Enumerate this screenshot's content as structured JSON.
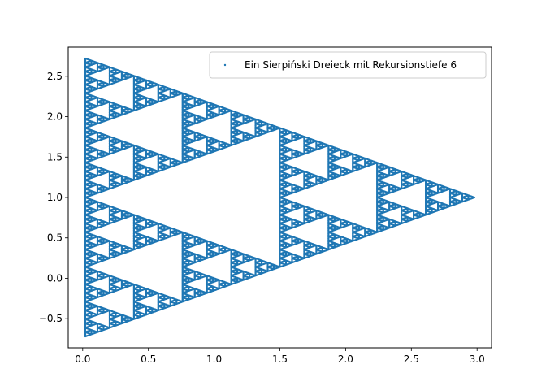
{
  "chart_data": {
    "type": "scatter",
    "title": "",
    "xlabel": "",
    "ylabel": "",
    "xlim": [
      -0.11,
      3.11
    ],
    "ylim": [
      -0.86,
      2.86
    ],
    "xticks": [
      {
        "value": 0.0,
        "label": "0.0"
      },
      {
        "value": 0.5,
        "label": "0.5"
      },
      {
        "value": 1.0,
        "label": "1.0"
      },
      {
        "value": 1.5,
        "label": "1.5"
      },
      {
        "value": 2.0,
        "label": "2.0"
      },
      {
        "value": 2.5,
        "label": "2.5"
      },
      {
        "value": 3.0,
        "label": "3.0"
      }
    ],
    "yticks": [
      {
        "value": -0.5,
        "label": "−0.5"
      },
      {
        "value": 0.0,
        "label": "0.0"
      },
      {
        "value": 0.5,
        "label": "0.5"
      },
      {
        "value": 1.0,
        "label": "1.0"
      },
      {
        "value": 1.5,
        "label": "1.5"
      },
      {
        "value": 2.0,
        "label": "2.0"
      },
      {
        "value": 2.5,
        "label": "2.5"
      }
    ],
    "grid": false,
    "legend_position": "top-right",
    "series": [
      {
        "name": "Ein Sierpiński Dreieck mit Rekursionstiefe 6",
        "color": "#1f77b4",
        "marker": "point",
        "vertices": [
          [
            0.02,
            -0.72
          ],
          [
            0.02,
            2.72
          ],
          [
            2.98,
            1.0
          ]
        ],
        "recursion_depth": 6,
        "points_per_edge": 8
      }
    ]
  }
}
